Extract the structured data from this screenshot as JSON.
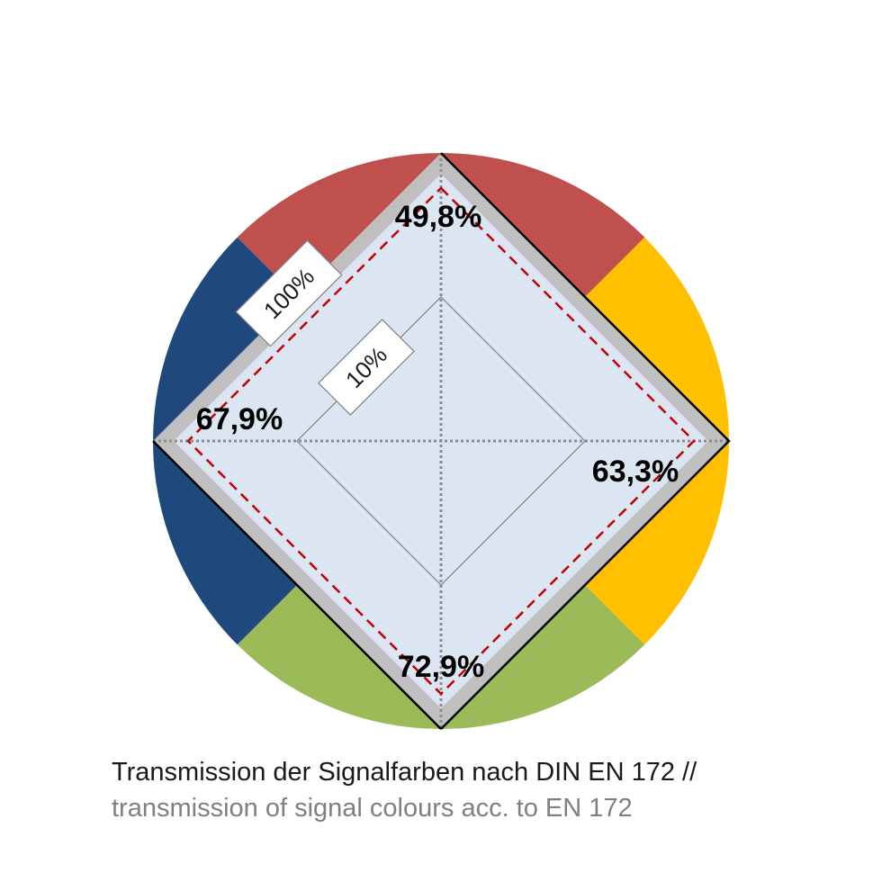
{
  "chart_data": {
    "type": "radar",
    "axes": [
      {
        "color": "red",
        "value": 49.8,
        "label": "49,8%"
      },
      {
        "color": "yellow",
        "value": 63.3,
        "label": "63,3%"
      },
      {
        "color": "green",
        "value": 72.9,
        "label": "72,9%"
      },
      {
        "color": "blue",
        "value": 67.9,
        "label": "67,9%"
      }
    ],
    "scale": "log",
    "range": [
      1,
      100
    ],
    "ring_labels": [
      "100%",
      "10%"
    ],
    "colors": {
      "red": "#c0504d",
      "yellow": "#ffc000",
      "green": "#9bbb59",
      "blue": "#1f497d",
      "frame": "#bfbfbf",
      "fill": "#dce6f2",
      "threshold_line": "#c00000"
    }
  },
  "caption": {
    "line1": "Transmission der Signalfarben nach DIN EN 172 //",
    "line2": "transmission of signal colours acc. to EN 172"
  }
}
